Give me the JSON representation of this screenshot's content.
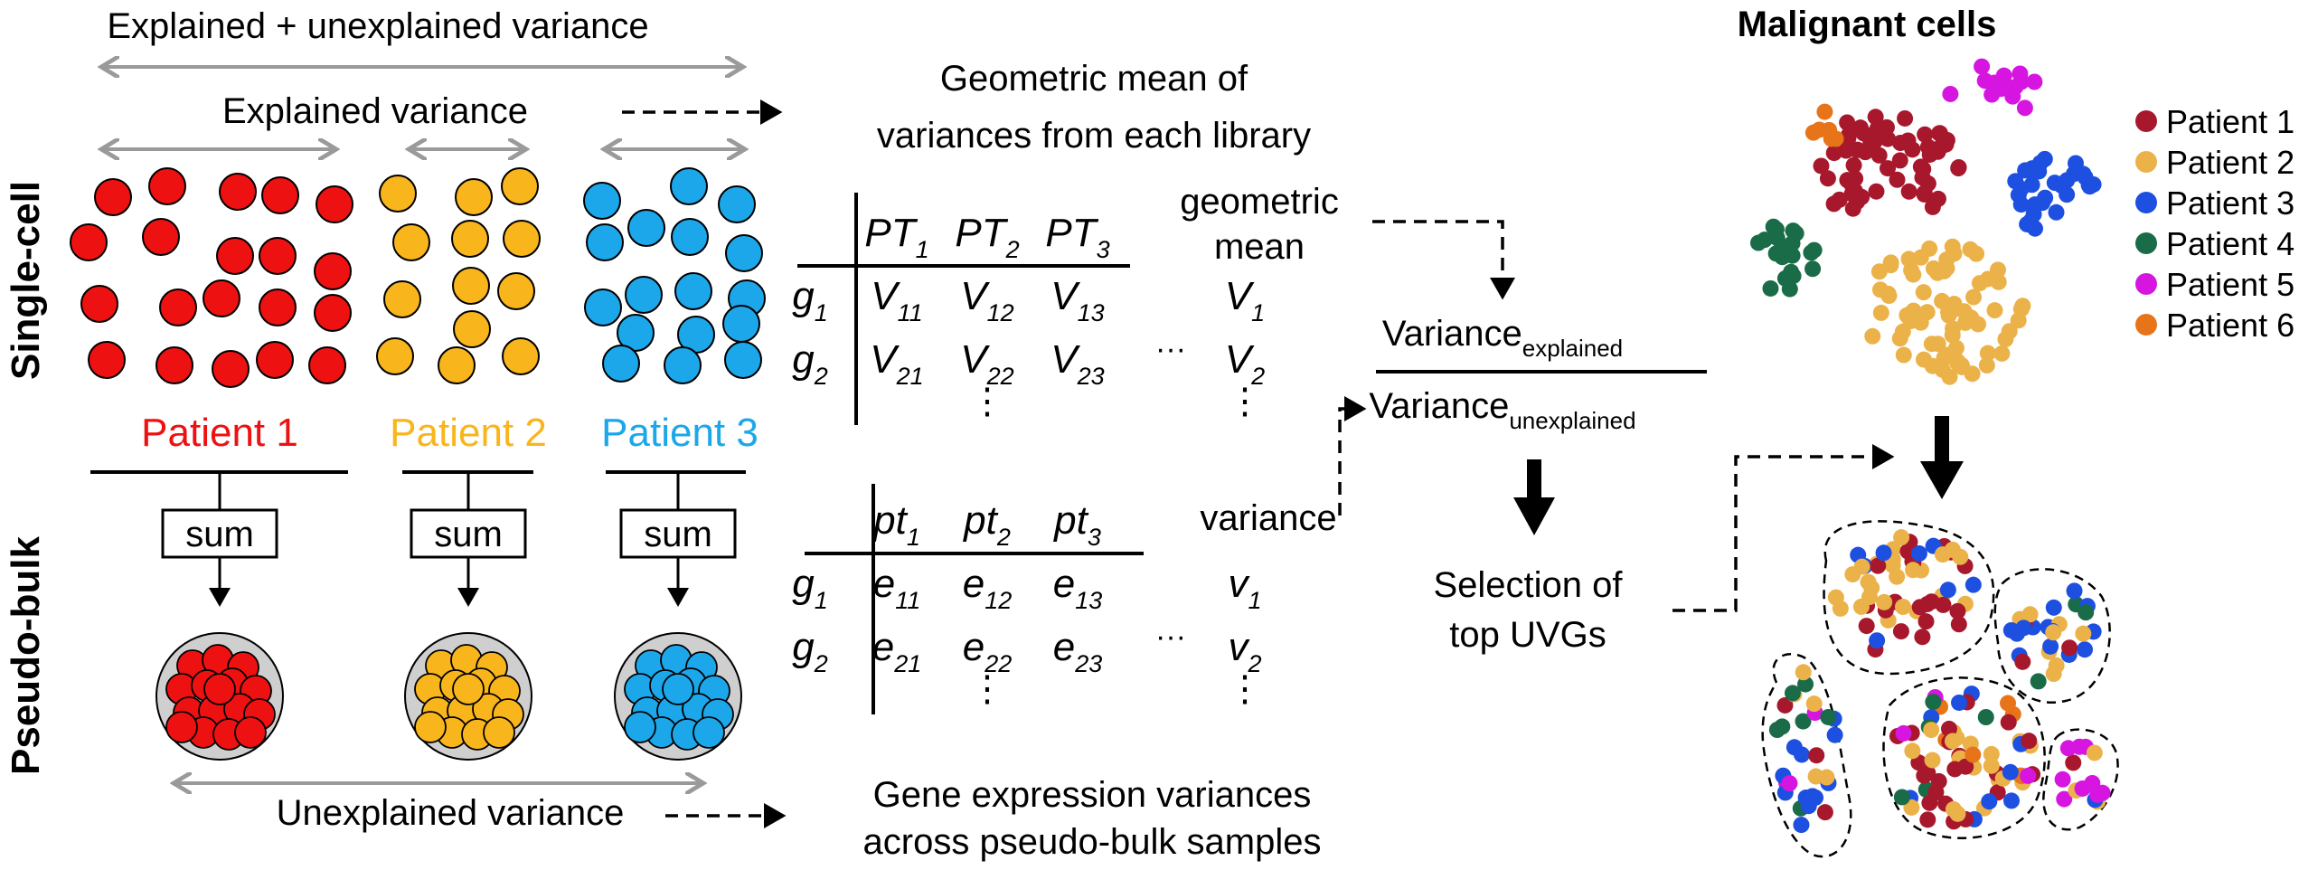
{
  "labels": {
    "explained_unexplained": "Explained + unexplained variance",
    "explained": "Explained variance",
    "geo_mean_line1": "Geometric mean of",
    "geo_mean_line2": "variances from each library",
    "unexplained": "Unexplained variance",
    "gene_expr_line1": "Gene expression variances",
    "gene_expr_line2": "across pseudo-bulk samples",
    "single_cell": "Single-cell",
    "pseudo_bulk": "Pseudo-bulk",
    "sum": "sum",
    "geometric": "geometric",
    "mean": "mean",
    "variance": "variance",
    "ratio_num": "Variance",
    "ratio_num_sub": "explained",
    "ratio_den": "Variance",
    "ratio_den_sub": "unexplained",
    "selection_line1": "Selection of",
    "selection_line2": "top UVGs",
    "malignant": "Malignant cells",
    "ellipsis_h": "···",
    "ellipsis_v": "⋮"
  },
  "patients": [
    {
      "label": "Patient 1",
      "color": "#ee1111"
    },
    {
      "label": "Patient 2",
      "color": "#f8b51c"
    },
    {
      "label": "Patient 3",
      "color": "#1ca7ea"
    }
  ],
  "sc_table": {
    "cols": [
      {
        "base": "PT",
        "sub": "1"
      },
      {
        "base": "PT",
        "sub": "2"
      },
      {
        "base": "PT",
        "sub": "3"
      }
    ],
    "rows": [
      {
        "label": {
          "base": "g",
          "sub": "1"
        },
        "cells": [
          {
            "base": "V",
            "sub": "11"
          },
          {
            "base": "V",
            "sub": "12"
          },
          {
            "base": "V",
            "sub": "13"
          }
        ],
        "result": {
          "base": "V",
          "sub": "1"
        }
      },
      {
        "label": {
          "base": "g",
          "sub": "2"
        },
        "cells": [
          {
            "base": "V",
            "sub": "21"
          },
          {
            "base": "V",
            "sub": "22"
          },
          {
            "base": "V",
            "sub": "23"
          }
        ],
        "result": {
          "base": "V",
          "sub": "2"
        }
      }
    ]
  },
  "pb_table": {
    "cols": [
      {
        "base": "pt",
        "sub": "1"
      },
      {
        "base": "pt",
        "sub": "2"
      },
      {
        "base": "pt",
        "sub": "3"
      }
    ],
    "rows": [
      {
        "label": {
          "base": "g",
          "sub": "1"
        },
        "cells": [
          {
            "base": "e",
            "sub": "11"
          },
          {
            "base": "e",
            "sub": "12"
          },
          {
            "base": "e",
            "sub": "13"
          }
        ],
        "result": {
          "base": "v",
          "sub": "1"
        }
      },
      {
        "label": {
          "base": "g",
          "sub": "2"
        },
        "cells": [
          {
            "base": "e",
            "sub": "21"
          },
          {
            "base": "e",
            "sub": "22"
          },
          {
            "base": "e",
            "sub": "23"
          }
        ],
        "result": {
          "base": "v",
          "sub": "2"
        }
      }
    ]
  },
  "legend": [
    {
      "label": "Patient 1",
      "color": "#a8182d"
    },
    {
      "label": "Patient 2",
      "color": "#ecb24a"
    },
    {
      "label": "Patient 3",
      "color": "#1d4fe0"
    },
    {
      "label": "Patient 4",
      "color": "#1a6b47"
    },
    {
      "label": "Patient 5",
      "color": "#d616e0"
    },
    {
      "label": "Patient 6",
      "color": "#e8741a"
    }
  ],
  "colors": {
    "gray_arrow": "#9a9a9a",
    "bulk_circle": "#cfcfcf",
    "text": "#000000"
  }
}
